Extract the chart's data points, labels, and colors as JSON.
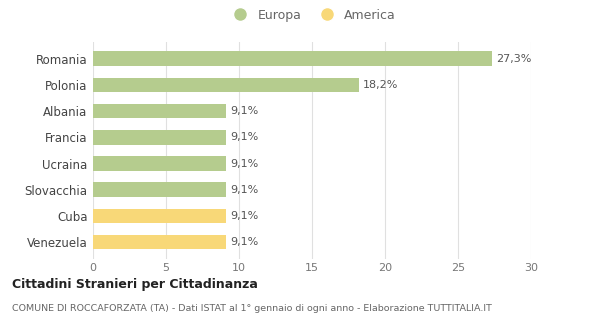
{
  "categories": [
    "Venezuela",
    "Cuba",
    "Slovacchia",
    "Ucraina",
    "Francia",
    "Albania",
    "Polonia",
    "Romania"
  ],
  "values": [
    9.1,
    9.1,
    9.1,
    9.1,
    9.1,
    9.1,
    18.2,
    27.3
  ],
  "labels": [
    "9,1%",
    "9,1%",
    "9,1%",
    "9,1%",
    "9,1%",
    "9,1%",
    "18,2%",
    "27,3%"
  ],
  "colors": [
    "#f8d878",
    "#f8d878",
    "#b5cc8e",
    "#b5cc8e",
    "#b5cc8e",
    "#b5cc8e",
    "#b5cc8e",
    "#b5cc8e"
  ],
  "europa_color": "#b5cc8e",
  "america_color": "#f8d878",
  "xlim": [
    0,
    30
  ],
  "xticks": [
    0,
    5,
    10,
    15,
    20,
    25,
    30
  ],
  "title": "Cittadini Stranieri per Cittadinanza",
  "subtitle": "COMUNE DI ROCCAFORZATA (TA) - Dati ISTAT al 1° gennaio di ogni anno - Elaborazione TUTTITALIA.IT",
  "legend_europa": "Europa",
  "legend_america": "America",
  "background_color": "#ffffff",
  "grid_color": "#e0e0e0"
}
